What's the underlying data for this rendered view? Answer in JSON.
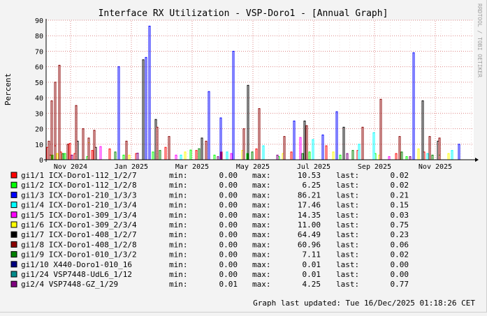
{
  "chart_data": {
    "type": "bar",
    "title": "Interface RX Utilization - VSP-Doro1 - [Annual Graph]",
    "ylabel": "Percent",
    "watermark": "RRDTOOL / TOBI OETIKER",
    "ylim": [
      0,
      90
    ],
    "yticks": [
      "0",
      "10",
      "20",
      "30",
      "40",
      "50",
      "60",
      "70",
      "80",
      "90"
    ],
    "xticks": [
      "Nov 2024",
      "Jan 2025",
      "Mar 2025",
      "May 2025",
      "Jul 2025",
      "Sep 2025",
      "Nov 2025"
    ],
    "grid": true,
    "legend_columns": [
      "min:",
      "max:",
      "last:"
    ],
    "series": [
      {
        "name": "gi1/1 ICX-Doro1-112_1/2/7",
        "color": "#ff0000",
        "min": "0.00",
        "max": "10.53",
        "last": "0.02",
        "spikes": [
          [
            1,
            8
          ],
          [
            5,
            3
          ],
          [
            12,
            9
          ],
          [
            20,
            5
          ],
          [
            33,
            10.5
          ],
          [
            40,
            4
          ],
          [
            65,
            6
          ],
          [
            90,
            7
          ],
          [
            128,
            4
          ],
          [
            170,
            8
          ],
          [
            214,
            6
          ],
          [
            250,
            5
          ],
          [
            300,
            7
          ],
          [
            350,
            5
          ],
          [
            400,
            9
          ],
          [
            445,
            6
          ],
          [
            500,
            4
          ],
          [
            540,
            5
          ]
        ]
      },
      {
        "name": "gi1/2 ICX-Doro1-112_1/2/8",
        "color": "#00ff00",
        "min": "0.00",
        "max": "6.25",
        "last": "0.02",
        "spikes": [
          [
            8,
            3
          ],
          [
            26,
            4
          ],
          [
            58,
            2
          ],
          [
            110,
            3
          ],
          [
            152,
            5
          ],
          [
            206,
            6.25
          ],
          [
            240,
            3
          ],
          [
            287,
            4
          ],
          [
            332,
            2
          ],
          [
            376,
            5
          ],
          [
            420,
            3
          ],
          [
            470,
            4
          ],
          [
            515,
            2
          ],
          [
            562,
            3
          ]
        ]
      },
      {
        "name": "gi1/3 ICX-Doro1-210_1/3/3",
        "color": "#0000ff",
        "min": "0.00",
        "max": "86.21",
        "last": "0.21",
        "spikes": [
          [
            103,
            60
          ],
          [
            142,
            66
          ],
          [
            147,
            86.21
          ],
          [
            232,
            44
          ],
          [
            249,
            27
          ],
          [
            267,
            70
          ],
          [
            354,
            25
          ],
          [
            395,
            16
          ],
          [
            415,
            31
          ],
          [
            525,
            69
          ],
          [
            590,
            10
          ]
        ]
      },
      {
        "name": "gi1/4 ICX-Doro1-210_1/3/4",
        "color": "#00ffff",
        "min": "0.00",
        "max": "17.46",
        "last": "0.15",
        "spikes": [
          [
            192,
            3
          ],
          [
            258,
            5
          ],
          [
            310,
            9
          ],
          [
            381,
            13
          ],
          [
            447,
            10
          ],
          [
            468,
            17.46
          ],
          [
            545,
            4
          ],
          [
            580,
            6
          ]
        ]
      },
      {
        "name": "gi1/5 ICX-Doro1-309_1/3/4",
        "color": "#ff00ff",
        "min": "0.00",
        "max": "14.35",
        "last": "0.03",
        "spikes": [
          [
            77,
            8.5
          ],
          [
            185,
            3
          ],
          [
            264,
            4
          ],
          [
            363,
            14.35
          ],
          [
            490,
            2
          ]
        ]
      },
      {
        "name": "gi1/6 ICX-Doro1-309_2/3/4",
        "color": "#ffff00",
        "min": "0.00",
        "max": "11.00",
        "last": "0.75",
        "spikes": [
          [
            15,
            4
          ],
          [
            60,
            11
          ],
          [
            118,
            3
          ],
          [
            198,
            5
          ],
          [
            280,
            6
          ],
          [
            338,
            4
          ],
          [
            410,
            5
          ],
          [
            476,
            3
          ],
          [
            532,
            7
          ],
          [
            575,
            4
          ]
        ]
      },
      {
        "name": "gi1/7 ICX-Doro1-408_1/2/7",
        "color": "#000000",
        "min": "0.00",
        "max": "64.49",
        "last": "0.23",
        "spikes": [
          [
            44,
            12
          ],
          [
            70,
            8
          ],
          [
            138,
            64.49
          ],
          [
            156,
            26
          ],
          [
            222,
            14
          ],
          [
            288,
            48
          ],
          [
            369,
            25
          ],
          [
            425,
            21
          ],
          [
            538,
            38
          ],
          [
            560,
            12
          ]
        ]
      },
      {
        "name": "gi1/8 ICX-Doro1-408_1/2/8",
        "color": "#8b0000",
        "min": "0.00",
        "max": "60.96",
        "last": "0.06",
        "spikes": [
          [
            3,
            12
          ],
          [
            7,
            38
          ],
          [
            12,
            50
          ],
          [
            18,
            60.96
          ],
          [
            30,
            10
          ],
          [
            42,
            35
          ],
          [
            52,
            20
          ],
          [
            60,
            14
          ],
          [
            68,
            19
          ],
          [
            114,
            12
          ],
          [
            158,
            21
          ],
          [
            175,
            15
          ],
          [
            228,
            12
          ],
          [
            282,
            20
          ],
          [
            304,
            33
          ],
          [
            340,
            15
          ],
          [
            372,
            22
          ],
          [
            452,
            21
          ],
          [
            478,
            39
          ],
          [
            505,
            15
          ],
          [
            548,
            15
          ],
          [
            562,
            14
          ]
        ]
      },
      {
        "name": "gi1/9 ICX-Doro1-010_1/3/2",
        "color": "#008000",
        "min": "0.00",
        "max": "7.11",
        "last": "0.02",
        "spikes": [
          [
            23,
            4
          ],
          [
            98,
            5
          ],
          [
            162,
            6
          ],
          [
            218,
            7.11
          ],
          [
            294,
            5
          ],
          [
            366,
            4
          ],
          [
            438,
            6
          ],
          [
            508,
            5
          ],
          [
            552,
            3
          ]
        ]
      },
      {
        "name": "gi1/10 X440-Doro1-010_16",
        "color": "#000080",
        "min": "0.00",
        "max": "0.01",
        "last": "0.00",
        "spikes": []
      },
      {
        "name": "gi1/24 VSP7448-UdL6_1/12",
        "color": "#008b8b",
        "min": "0.00",
        "max": "0.01",
        "last": "0.00",
        "spikes": []
      },
      {
        "name": "gi2/4 VSP7448-GZ_1/29",
        "color": "#800080",
        "min": "0.01",
        "max": "4.25",
        "last": "0.77",
        "spikes": [
          [
            36,
            3
          ],
          [
            130,
            4.25
          ],
          [
            245,
            2
          ],
          [
            330,
            3
          ],
          [
            430,
            4
          ],
          [
            520,
            2
          ]
        ]
      }
    ],
    "footer": "Graph last updated: Tue 16/Dec/2025 01:18:26 CET"
  }
}
